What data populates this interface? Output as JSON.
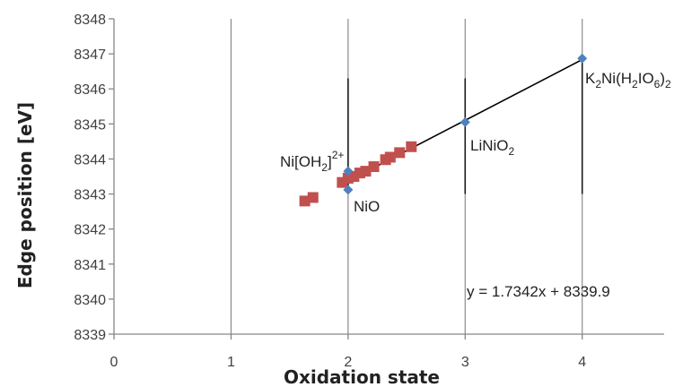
{
  "chart_data": {
    "type": "scatter",
    "xlabel": "Oxidation state",
    "ylabel": "Edge position [eV]",
    "xlim": [
      0,
      4.7
    ],
    "ylim": [
      8339,
      8348
    ],
    "x_ticks": [
      0,
      1,
      2,
      3,
      4
    ],
    "y_ticks": [
      8339,
      8340,
      8341,
      8342,
      8343,
      8344,
      8345,
      8346,
      8347,
      8348
    ],
    "vertical_gridlines": true,
    "horizontal_gridlines": false,
    "series": [
      {
        "marker": "square",
        "color": "#c0504d",
        "points": [
          {
            "x": 1.63,
            "y": 8342.8
          },
          {
            "x": 1.7,
            "y": 8342.9
          },
          {
            "x": 1.95,
            "y": 8343.33
          },
          {
            "x": 2.0,
            "y": 8343.45
          },
          {
            "x": 2.05,
            "y": 8343.5
          },
          {
            "x": 2.1,
            "y": 8343.6
          },
          {
            "x": 2.15,
            "y": 8343.65
          },
          {
            "x": 2.22,
            "y": 8343.78
          },
          {
            "x": 2.32,
            "y": 8343.98
          },
          {
            "x": 2.36,
            "y": 8344.05
          },
          {
            "x": 2.44,
            "y": 8344.18
          },
          {
            "x": 2.54,
            "y": 8344.35
          }
        ]
      },
      {
        "marker": "diamond",
        "color": "#4f81bd",
        "points": [
          {
            "x": 2.0,
            "y": 8343.65,
            "label": "Ni[OH2]2+"
          },
          {
            "x": 2.0,
            "y": 8343.12,
            "label": "NiO"
          },
          {
            "x": 3.0,
            "y": 8345.05,
            "label": "LiNiO2"
          },
          {
            "x": 4.0,
            "y": 8346.87,
            "label": "K2Ni(H2IO6)2"
          }
        ]
      }
    ],
    "fit_line": {
      "slope": 1.7342,
      "intercept": 8339.9,
      "x_range": [
        1.98,
        4.0
      ],
      "color": "#000000"
    },
    "error_bars": [
      {
        "x": 2.0,
        "ymin": 8343.0,
        "ymax": 8346.3
      },
      {
        "x": 3.0,
        "ymin": 8343.0,
        "ymax": 8346.3
      },
      {
        "x": 4.0,
        "ymin": 8343.0,
        "ymax": 8346.87
      }
    ],
    "equation": "y = 1.7342x + 8339.9",
    "annotations": {
      "nioh2": {
        "base": "Ni[OH",
        "sub": "2",
        "close": "]",
        "sup": "2+"
      },
      "nio": "NiO",
      "linio2": {
        "base": "LiNiO",
        "sub": "2"
      },
      "k2ni": {
        "k": "K",
        "sub1": "2",
        "mid": "Ni(H",
        "sub2": "2",
        "mid2": "IO",
        "sub3": "6",
        "close": ")",
        "sub4": "2"
      }
    }
  }
}
